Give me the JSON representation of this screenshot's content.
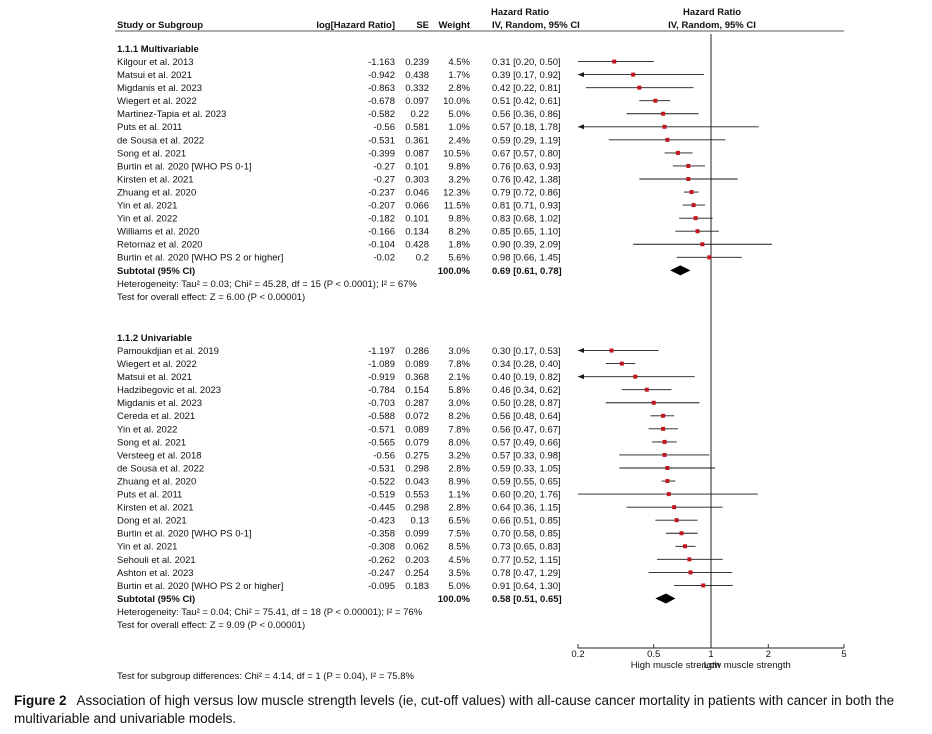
{
  "chart_data": {
    "type": "forest",
    "headers": {
      "study": "Study or Subgroup",
      "log_hr": "log[Hazard Ratio]",
      "se": "SE",
      "weight": "Weight",
      "hr_top": "Hazard Ratio",
      "hr_method": "IV, Random, 95% CI",
      "plot_top": "Hazard Ratio",
      "plot_method": "IV, Random, 95% CI"
    },
    "x_scale": "log",
    "xlim": [
      0.2,
      5
    ],
    "x_ticks": [
      "0.2",
      "0.5",
      "1",
      "2",
      "5"
    ],
    "x_label_left": "High muscle strength",
    "x_label_right": "Low muscle strength",
    "subgroups": [
      {
        "title": "1.1.1 Multivariable",
        "studies": [
          {
            "name": "Kilgour et al. 2013",
            "log_hr": "-1.163",
            "se": "0.239",
            "weight": "4.5%",
            "ci_text": "0.31 [0.20, 0.50]",
            "hr": 0.31,
            "lo": 0.2,
            "hi": 0.5
          },
          {
            "name": "Matsui et al. 2021",
            "log_hr": "-0.942",
            "se": "0.438",
            "weight": "1.7%",
            "ci_text": "0.39 [0.17, 0.92]",
            "hr": 0.39,
            "lo": 0.17,
            "hi": 0.92
          },
          {
            "name": "Migdanis et al. 2023",
            "log_hr": "-0.863",
            "se": "0.332",
            "weight": "2.8%",
            "ci_text": "0.42 [0.22, 0.81]",
            "hr": 0.42,
            "lo": 0.22,
            "hi": 0.81
          },
          {
            "name": "Wiegert et al. 2022",
            "log_hr": "-0.678",
            "se": "0.097",
            "weight": "10.0%",
            "ci_text": "0.51 [0.42, 0.61]",
            "hr": 0.51,
            "lo": 0.42,
            "hi": 0.61
          },
          {
            "name": "Martinez-Tapia et al. 2023",
            "log_hr": "-0.582",
            "se": "0.22",
            "weight": "5.0%",
            "ci_text": "0.56 [0.36, 0.86]",
            "hr": 0.56,
            "lo": 0.36,
            "hi": 0.86
          },
          {
            "name": "Puts et al. 2011",
            "log_hr": "-0.56",
            "se": "0.581",
            "weight": "1.0%",
            "ci_text": "0.57 [0.18, 1.78]",
            "hr": 0.57,
            "lo": 0.18,
            "hi": 1.78
          },
          {
            "name": "de Sousa et al. 2022",
            "log_hr": "-0.531",
            "se": "0.361",
            "weight": "2.4%",
            "ci_text": "0.59 [0.29, 1.19]",
            "hr": 0.59,
            "lo": 0.29,
            "hi": 1.19
          },
          {
            "name": "Song et al. 2021",
            "log_hr": "-0.399",
            "se": "0.087",
            "weight": "10.5%",
            "ci_text": "0.67 [0.57, 0.80]",
            "hr": 0.67,
            "lo": 0.57,
            "hi": 0.8
          },
          {
            "name": "Burtin et al. 2020 [WHO PS 0-1]",
            "log_hr": "-0.27",
            "se": "0.101",
            "weight": "9.8%",
            "ci_text": "0.76 [0.63, 0.93]",
            "hr": 0.76,
            "lo": 0.63,
            "hi": 0.93
          },
          {
            "name": "Kirsten et al. 2021",
            "log_hr": "-0.27",
            "se": "0.303",
            "weight": "3.2%",
            "ci_text": "0.76 [0.42, 1.38]",
            "hr": 0.76,
            "lo": 0.42,
            "hi": 1.38
          },
          {
            "name": "Zhuang et al. 2020",
            "log_hr": "-0.237",
            "se": "0.046",
            "weight": "12.3%",
            "ci_text": "0.79 [0.72, 0.86]",
            "hr": 0.79,
            "lo": 0.72,
            "hi": 0.86
          },
          {
            "name": "Yin et al. 2021",
            "log_hr": "-0.207",
            "se": "0.066",
            "weight": "11.5%",
            "ci_text": "0.81 [0.71, 0.93]",
            "hr": 0.81,
            "lo": 0.71,
            "hi": 0.93
          },
          {
            "name": "Yin et al. 2022",
            "log_hr": "-0.182",
            "se": "0.101",
            "weight": "9.8%",
            "ci_text": "0.83 [0.68, 1.02]",
            "hr": 0.83,
            "lo": 0.68,
            "hi": 1.02
          },
          {
            "name": "Williams et al. 2020",
            "log_hr": "-0.166",
            "se": "0.134",
            "weight": "8.2%",
            "ci_text": "0.85 [0.65, 1.10]",
            "hr": 0.85,
            "lo": 0.65,
            "hi": 1.1
          },
          {
            "name": "Retornaz et al. 2020",
            "log_hr": "-0.104",
            "se": "0.428",
            "weight": "1.8%",
            "ci_text": "0.90 [0.39, 2.09]",
            "hr": 0.9,
            "lo": 0.39,
            "hi": 2.09
          },
          {
            "name": "Burtin et al. 2020 [WHO PS 2 or higher]",
            "log_hr": "-0.02",
            "se": "0.2",
            "weight": "5.6%",
            "ci_text": "0.98 [0.66, 1.45]",
            "hr": 0.98,
            "lo": 0.66,
            "hi": 1.45
          }
        ],
        "subtotal": {
          "label": "Subtotal (95% CI)",
          "weight": "100.0%",
          "ci_text": "0.69 [0.61, 0.78]",
          "hr": 0.69,
          "lo": 0.61,
          "hi": 0.78
        },
        "heterogeneity": "Heterogeneity: Tau² = 0.03; Chi² = 45.28, df = 15 (P < 0.0001); I² = 67%",
        "overall_effect": "Test for overall effect: Z = 6.00 (P < 0.00001)"
      },
      {
        "title": "1.1.2 Univariable",
        "studies": [
          {
            "name": "Pamoukdjian et al. 2019",
            "log_hr": "-1.197",
            "se": "0.286",
            "weight": "3.0%",
            "ci_text": "0.30 [0.17, 0.53]",
            "hr": 0.3,
            "lo": 0.17,
            "hi": 0.53
          },
          {
            "name": "Wiegert et al. 2022",
            "log_hr": "-1.089",
            "se": "0.089",
            "weight": "7.8%",
            "ci_text": "0.34 [0.28, 0.40]",
            "hr": 0.34,
            "lo": 0.28,
            "hi": 0.4
          },
          {
            "name": "Matsui et al. 2021",
            "log_hr": "-0.919",
            "se": "0.368",
            "weight": "2.1%",
            "ci_text": "0.40 [0.19, 0.82]",
            "hr": 0.4,
            "lo": 0.19,
            "hi": 0.82
          },
          {
            "name": "Hadzibegovic et al. 2023",
            "log_hr": "-0.784",
            "se": "0.154",
            "weight": "5.8%",
            "ci_text": "0.46 [0.34, 0.62]",
            "hr": 0.46,
            "lo": 0.34,
            "hi": 0.62
          },
          {
            "name": "Migdanis et al. 2023",
            "log_hr": "-0.703",
            "se": "0.287",
            "weight": "3.0%",
            "ci_text": "0.50 [0.28, 0.87]",
            "hr": 0.5,
            "lo": 0.28,
            "hi": 0.87
          },
          {
            "name": "Cereda et al. 2021",
            "log_hr": "-0.588",
            "se": "0.072",
            "weight": "8.2%",
            "ci_text": "0.56 [0.48, 0.64]",
            "hr": 0.56,
            "lo": 0.48,
            "hi": 0.64
          },
          {
            "name": "Yin et al. 2022",
            "log_hr": "-0.571",
            "se": "0.089",
            "weight": "7.8%",
            "ci_text": "0.56 [0.47, 0.67]",
            "hr": 0.56,
            "lo": 0.47,
            "hi": 0.67
          },
          {
            "name": "Song et al. 2021",
            "log_hr": "-0.565",
            "se": "0.079",
            "weight": "8.0%",
            "ci_text": "0.57 [0.49, 0.66]",
            "hr": 0.57,
            "lo": 0.49,
            "hi": 0.66
          },
          {
            "name": "Versteeg et al. 2018",
            "log_hr": "-0.56",
            "se": "0.275",
            "weight": "3.2%",
            "ci_text": "0.57 [0.33, 0.98]",
            "hr": 0.57,
            "lo": 0.33,
            "hi": 0.98
          },
          {
            "name": "de Sousa et al. 2022",
            "log_hr": "-0.531",
            "se": "0.298",
            "weight": "2.8%",
            "ci_text": "0.59 [0.33, 1.05]",
            "hr": 0.59,
            "lo": 0.33,
            "hi": 1.05
          },
          {
            "name": "Zhuang et al. 2020",
            "log_hr": "-0.522",
            "se": "0.043",
            "weight": "8.9%",
            "ci_text": "0.59 [0.55, 0.65]",
            "hr": 0.59,
            "lo": 0.55,
            "hi": 0.65
          },
          {
            "name": "Puts et al. 2011",
            "log_hr": "-0.519",
            "se": "0.553",
            "weight": "1.1%",
            "ci_text": "0.60 [0.20, 1.76]",
            "hr": 0.6,
            "lo": 0.2,
            "hi": 1.76
          },
          {
            "name": "Kirsten et al. 2021",
            "log_hr": "-0.445",
            "se": "0.298",
            "weight": "2.8%",
            "ci_text": "0.64 [0.36, 1.15]",
            "hr": 0.64,
            "lo": 0.36,
            "hi": 1.15
          },
          {
            "name": "Dong et al. 2021",
            "log_hr": "-0.423",
            "se": "0.13",
            "weight": "6.5%",
            "ci_text": "0.66 [0.51, 0.85]",
            "hr": 0.66,
            "lo": 0.51,
            "hi": 0.85
          },
          {
            "name": "Burtin et al. 2020 [WHO PS 0-1]",
            "log_hr": "-0.358",
            "se": "0.099",
            "weight": "7.5%",
            "ci_text": "0.70 [0.58, 0.85]",
            "hr": 0.7,
            "lo": 0.58,
            "hi": 0.85
          },
          {
            "name": "Yin et al. 2021",
            "log_hr": "-0.308",
            "se": "0.062",
            "weight": "8.5%",
            "ci_text": "0.73 [0.65, 0.83]",
            "hr": 0.73,
            "lo": 0.65,
            "hi": 0.83
          },
          {
            "name": "Sehouli et al. 2021",
            "log_hr": "-0.262",
            "se": "0.203",
            "weight": "4.5%",
            "ci_text": "0.77 [0.52, 1.15]",
            "hr": 0.77,
            "lo": 0.52,
            "hi": 1.15
          },
          {
            "name": "Ashton et al. 2023",
            "log_hr": "-0.247",
            "se": "0.254",
            "weight": "3.5%",
            "ci_text": "0.78 [0.47, 1.29]",
            "hr": 0.78,
            "lo": 0.47,
            "hi": 1.29
          },
          {
            "name": "Burtin et al. 2020 [WHO PS 2 or higher]",
            "log_hr": "-0.095",
            "se": "0.183",
            "weight": "5.0%",
            "ci_text": "0.91 [0.64, 1.30]",
            "hr": 0.91,
            "lo": 0.64,
            "hi": 1.3
          }
        ],
        "subtotal": {
          "label": "Subtotal (95% CI)",
          "weight": "100.0%",
          "ci_text": "0.58 [0.51, 0.65]",
          "hr": 0.58,
          "lo": 0.51,
          "hi": 0.65
        },
        "heterogeneity": "Heterogeneity: Tau² = 0.04; Chi² = 75.41, df = 18 (P < 0.00001); I² = 76%",
        "overall_effect": "Test for overall effect: Z = 9.09 (P < 0.00001)"
      }
    ],
    "subgroup_test": "Test for subgroup differences: Chi² = 4.14, df = 1 (P = 0.04), I² = 75.8%",
    "colors": {
      "point": "#c0161f",
      "ci_line": "#1a1a1a",
      "diamond": "#000000"
    }
  },
  "caption": {
    "label": "Figure 2",
    "text": "Association of high versus low muscle strength levels (ie, cut-off values) with all-cause cancer mortality in patients with cancer in both the multivariable and univariable models."
  }
}
